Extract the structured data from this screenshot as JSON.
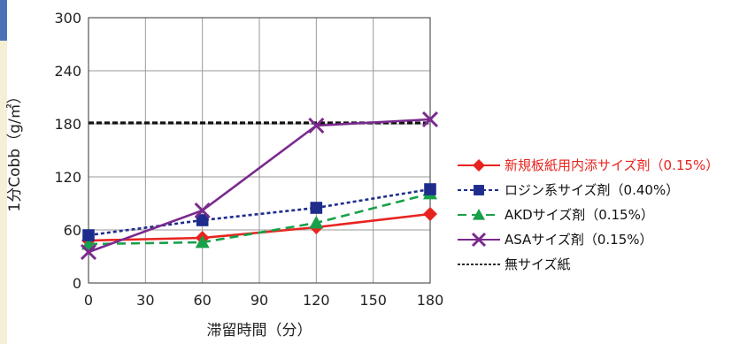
{
  "chart_data": {
    "type": "line",
    "title": "",
    "xlabel": "滞留時間（分）",
    "ylabel": "1分Cobb（g/㎡）",
    "x": [
      0,
      60,
      120,
      180
    ],
    "xticks": [
      0,
      30,
      60,
      90,
      120,
      150,
      180
    ],
    "yticks": [
      0,
      60,
      120,
      180,
      240,
      300
    ],
    "xlim": [
      0,
      180
    ],
    "ylim": [
      0,
      300
    ],
    "grid": true,
    "legend_position": "right",
    "series": [
      {
        "name": "新規板紙用内添サイズ剤（0.15%）",
        "color": "#e8231e",
        "style": "solid",
        "marker": "diamond",
        "values": [
          48,
          51,
          63,
          78
        ],
        "highlight": true
      },
      {
        "name": "ロジン系サイズ剤（0.40%）",
        "color": "#1e2d8c",
        "style": "dotted",
        "marker": "square",
        "values": [
          54,
          71,
          85,
          106
        ]
      },
      {
        "name": "AKDサイズ剤（0.15%）",
        "color": "#18a04a",
        "style": "dashed",
        "marker": "triangle",
        "values": [
          44,
          46,
          68,
          101
        ]
      },
      {
        "name": "ASAサイズ剤（0.15%）",
        "color": "#7a2a8e",
        "style": "solid",
        "marker": "x",
        "values": [
          35,
          82,
          178,
          185
        ]
      },
      {
        "name": "無サイズ紙",
        "color": "#111111",
        "style": "dashed-black",
        "marker": "none",
        "values": [
          181,
          181,
          181,
          181
        ]
      }
    ]
  }
}
